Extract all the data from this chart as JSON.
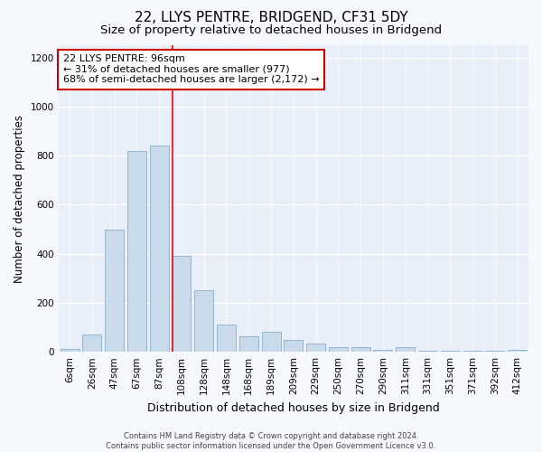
{
  "title": "22, LLYS PENTRE, BRIDGEND, CF31 5DY",
  "subtitle": "Size of property relative to detached houses in Bridgend",
  "xlabel": "Distribution of detached houses by size in Bridgend",
  "ylabel": "Number of detached properties",
  "footer_line1": "Contains HM Land Registry data © Crown copyright and database right 2024.",
  "footer_line2": "Contains public sector information licensed under the Open Government Licence v3.0.",
  "annotation_title": "22 LLYS PENTRE: 96sqm",
  "annotation_line2": "← 31% of detached houses are smaller (977)",
  "annotation_line3": "68% of semi-detached houses are larger (2,172) →",
  "bar_labels": [
    "6sqm",
    "26sqm",
    "47sqm",
    "67sqm",
    "87sqm",
    "108sqm",
    "128sqm",
    "148sqm",
    "168sqm",
    "189sqm",
    "209sqm",
    "229sqm",
    "250sqm",
    "270sqm",
    "290sqm",
    "311sqm",
    "331sqm",
    "351sqm",
    "371sqm",
    "392sqm",
    "412sqm"
  ],
  "bar_values": [
    10,
    70,
    500,
    820,
    840,
    390,
    250,
    110,
    65,
    80,
    50,
    35,
    20,
    20,
    8,
    18,
    5,
    5,
    5,
    5,
    8
  ],
  "bar_color": "#c9daea",
  "bar_edge_color": "#8ab0c8",
  "red_line_x": 4.58,
  "ylim": [
    0,
    1250
  ],
  "yticks": [
    0,
    200,
    400,
    600,
    800,
    1000,
    1200
  ],
  "fig_bg": "#f5f8fd",
  "ax_bg": "#e8eff8",
  "title_fontsize": 11,
  "subtitle_fontsize": 9.5,
  "tick_fontsize": 7.5,
  "ylabel_fontsize": 8.5,
  "xlabel_fontsize": 9,
  "footer_fontsize": 6,
  "annot_fontsize": 8
}
